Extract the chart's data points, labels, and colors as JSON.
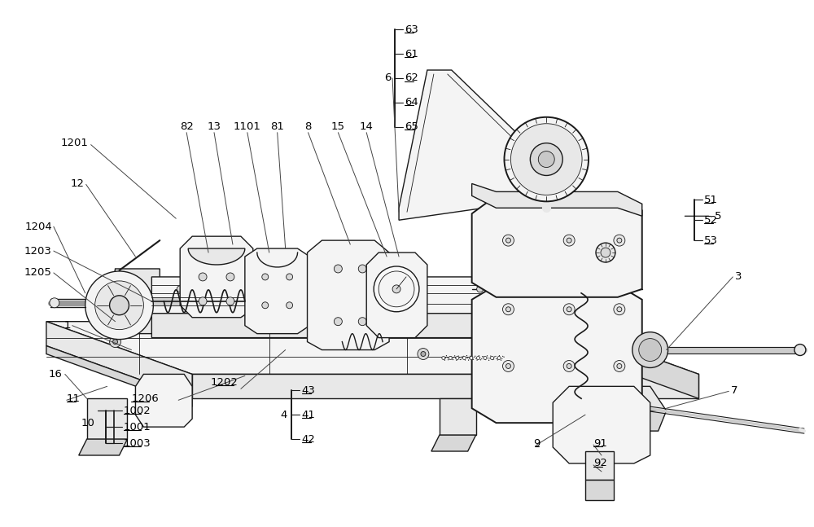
{
  "bg_color": "#ffffff",
  "line_color": "#1a1a1a",
  "fig_width": 10.0,
  "fig_height": 6.47,
  "dpi": 100,
  "label_fs": 9.5,
  "lw_main": 1.0,
  "lw_thin": 0.6,
  "lw_thick": 1.4,
  "fill_light": "#f4f4f4",
  "fill_mid": "#e8e8e8",
  "fill_dark": "#d8d8d8",
  "fill_darker": "#c8c8c8"
}
